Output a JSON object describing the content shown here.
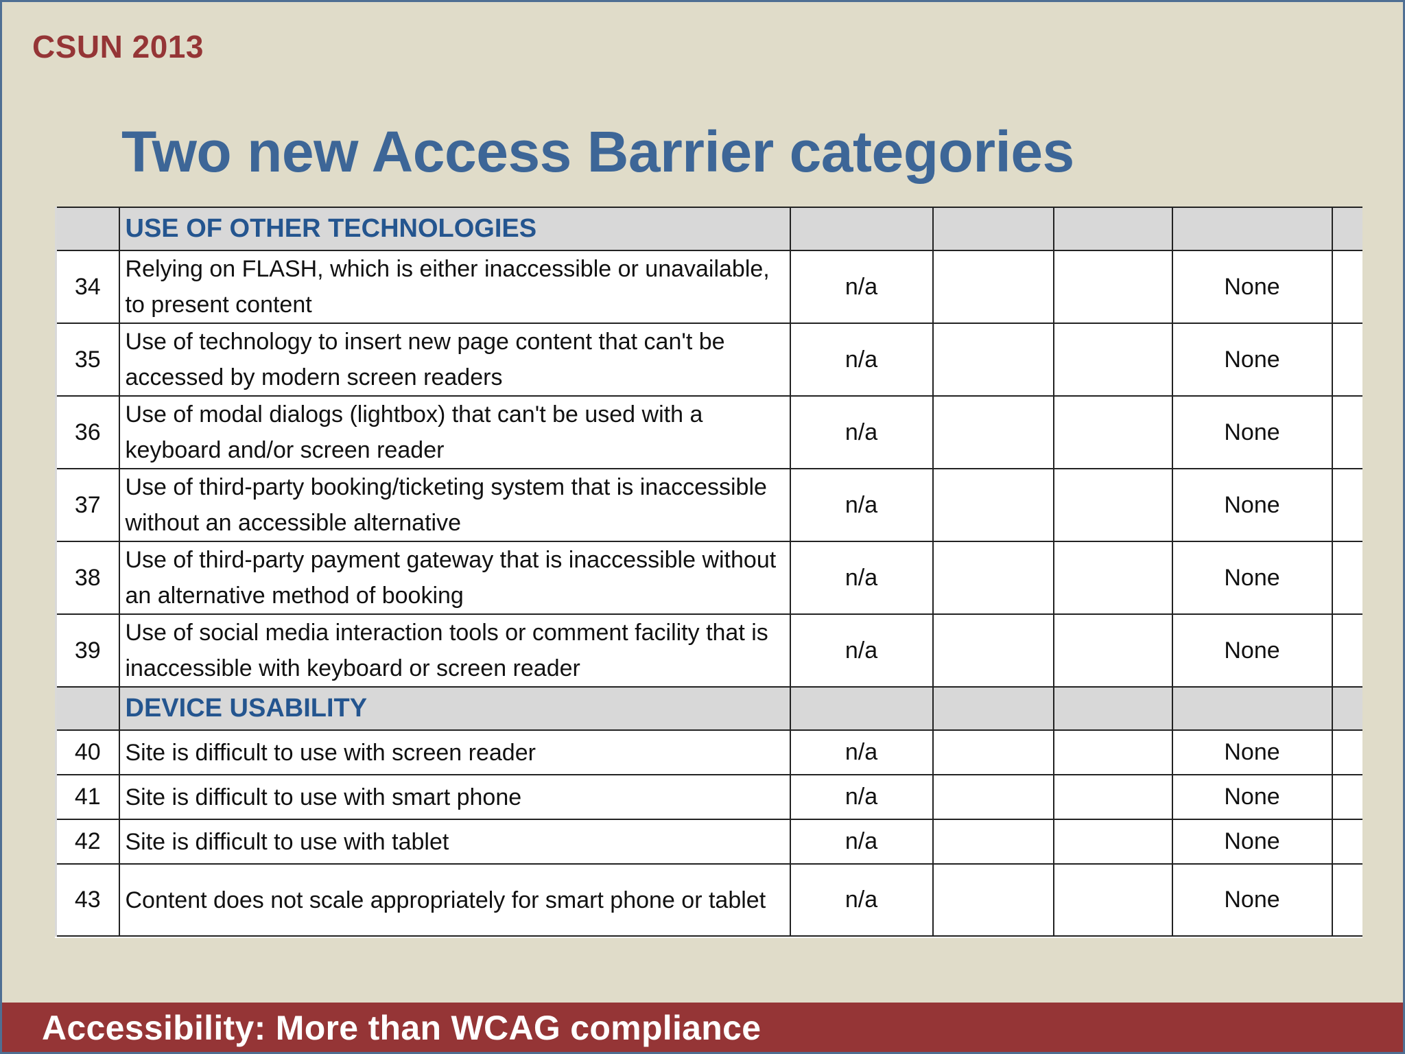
{
  "slide": {
    "conference": "CSUN 2013",
    "title": "Two new Access Barrier categories",
    "footer": "Accessibility: More than WCAG compliance"
  },
  "sections": [
    {
      "title": "USE OF OTHER TECHNOLOGIES",
      "rows": [
        {
          "num": "34",
          "text": "Relying on FLASH, which is either inaccessible or unavailable, to present content",
          "col3": "n/a",
          "col6": "None"
        },
        {
          "num": "35",
          "text": "Use of technology to insert new page content that can't be accessed by modern screen readers",
          "col3": "n/a",
          "col6": "None"
        },
        {
          "num": "36",
          "text": "Use of modal dialogs (lightbox) that can't be used with a keyboard and/or screen reader",
          "col3": "n/a",
          "col6": "None"
        },
        {
          "num": "37",
          "text": "Use of third-party booking/ticketing system that is inaccessible without an accessible alternative",
          "col3": "n/a",
          "col6": "None"
        },
        {
          "num": "38",
          "text": "Use of third-party payment gateway that is inaccessible without an alternative method of booking",
          "col3": "n/a",
          "col6": "None"
        },
        {
          "num": "39",
          "text": "Use of social media interaction tools or comment facility that is inaccessible with keyboard or screen reader",
          "col3": "n/a",
          "col6": "None"
        }
      ]
    },
    {
      "title": "DEVICE USABILITY",
      "rows": [
        {
          "num": "40",
          "text": "Site is difficult to use with screen reader",
          "col3": "n/a",
          "col6": "None"
        },
        {
          "num": "41",
          "text": "Site is difficult to use with smart phone",
          "col3": "n/a",
          "col6": "None"
        },
        {
          "num": "42",
          "text": "Site is difficult to use with tablet",
          "col3": "n/a",
          "col6": "None"
        },
        {
          "num": "43",
          "text": "Content does not scale appropriately for smart phone or tablet",
          "col3": "n/a",
          "col6": "None"
        }
      ]
    }
  ],
  "colors": {
    "background": "#e0dcc9",
    "accent_red": "#953536",
    "title_blue": "#3d6697",
    "section_header_bg": "#d8d8d8"
  }
}
